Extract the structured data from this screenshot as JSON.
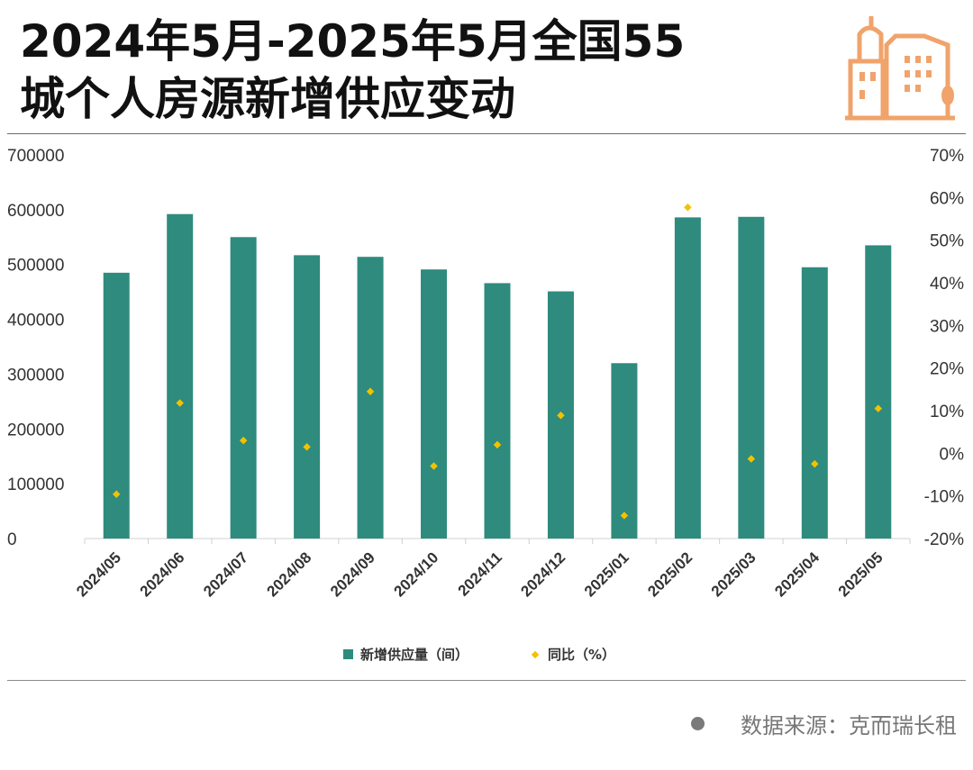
{
  "header": {
    "title_line1": "2024年5月-2025年5月全国55",
    "title_line2": "城个人房源新增供应变动"
  },
  "logo": {
    "icon": "city-buildings-icon",
    "color": "#f0a36b"
  },
  "legend": {
    "bar_label": "新增供应量（间）",
    "point_label": "同比（%）"
  },
  "source": {
    "text": "数据来源：克而瑞长租"
  },
  "colors": {
    "bar": "#2e8b7d",
    "point": "#f2c200",
    "axis_text": "#333333"
  },
  "chart_data": {
    "type": "bar",
    "categories": [
      "2024/05",
      "2024/06",
      "2024/07",
      "2024/08",
      "2024/09",
      "2024/10",
      "2024/11",
      "2024/12",
      "2025/01",
      "2025/02",
      "2025/03",
      "2025/04",
      "2025/05"
    ],
    "series": [
      {
        "name": "新增供应量（间）",
        "type": "bar",
        "axis": "left",
        "values": [
          485000,
          592000,
          550000,
          517000,
          514000,
          491000,
          466000,
          451000,
          320000,
          586000,
          587000,
          495000,
          535000
        ]
      },
      {
        "name": "同比（%）",
        "type": "scatter",
        "axis": "right",
        "values": [
          -9.6,
          11.8,
          3.0,
          1.5,
          14.5,
          -3.0,
          2.0,
          8.9,
          -14.6,
          57.7,
          -1.3,
          -2.5,
          10.5
        ]
      }
    ],
    "y_left": {
      "ylim": [
        0,
        700000
      ],
      "ticks": [
        0,
        100000,
        200000,
        300000,
        400000,
        500000,
        600000,
        700000
      ],
      "tick_labels": [
        "0",
        "100000",
        "200000",
        "300000",
        "400000",
        "500000",
        "600000",
        "700000"
      ]
    },
    "y_right": {
      "ylim": [
        -20,
        70
      ],
      "ticks": [
        -20,
        -10,
        0,
        10,
        20,
        30,
        40,
        50,
        60,
        70
      ],
      "tick_labels": [
        "-20%",
        "-10%",
        "0%",
        "10%",
        "20%",
        "30%",
        "40%",
        "50%",
        "60%",
        "70%"
      ]
    },
    "grid": false,
    "legend_position": "bottom"
  }
}
